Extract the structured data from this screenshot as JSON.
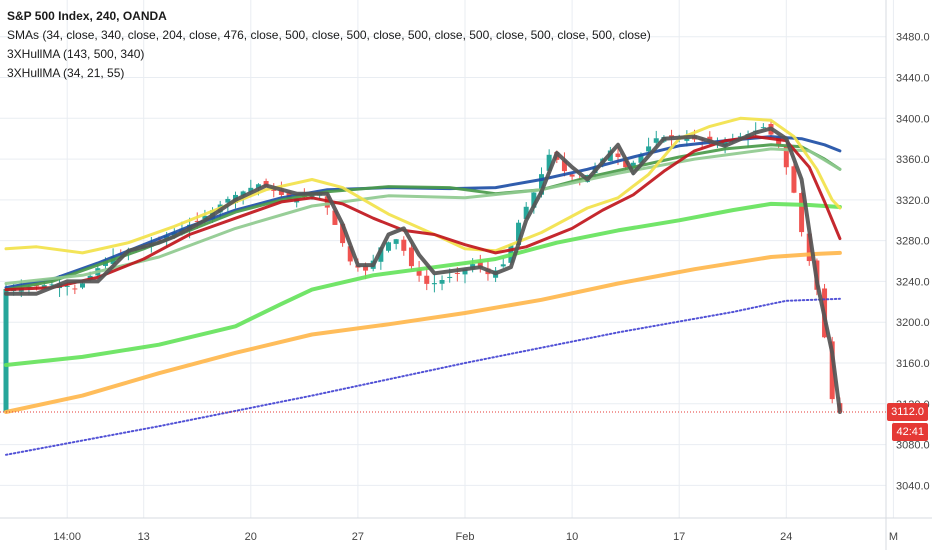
{
  "legend": {
    "title": "S&P 500 Index, 240, OANDA",
    "studies": [
      "SMAs (34, close, 340, close, 204, close, 476, close, 500, close, 500, close, 500, close, 500, close, 500, close, 500, close)",
      "3XHullMA (143, 500, 340)",
      "3XHullMA (34, 21, 55)"
    ]
  },
  "price_badge": "3112.0",
  "countdown_badge": "42:41",
  "colors": {
    "up": "#26a69a",
    "down": "#ef5350",
    "last_line": "#e53935",
    "badge_bg": "#e53935",
    "grid": "#e9edf2",
    "axis_text": "#444444"
  },
  "chart_data": {
    "type": "line",
    "title": "S&P 500 Index, 240, OANDA",
    "xlabel": "",
    "ylabel": "",
    "ylim": [
      3008,
      3516
    ],
    "x_ticks": [
      {
        "label": "14:00",
        "x": 8
      },
      {
        "label": "13",
        "x": 18
      },
      {
        "label": "20",
        "x": 32
      },
      {
        "label": "27",
        "x": 46
      },
      {
        "label": "Feb",
        "x": 60
      },
      {
        "label": "10",
        "x": 74
      },
      {
        "label": "17",
        "x": 88
      },
      {
        "label": "24",
        "x": 102
      },
      {
        "label": "M",
        "x": 116
      }
    ],
    "y_ticks": [
      3040,
      3080,
      3120,
      3160,
      3200,
      3240,
      3280,
      3320,
      3360,
      3400,
      3440,
      3480
    ],
    "last_price": 3112.0,
    "series": [
      {
        "role": "sma-500-blue-dots",
        "color": "#3f3fd1",
        "style": "dots",
        "width": 2,
        "points": [
          [
            0,
            3070
          ],
          [
            20,
            3098
          ],
          [
            40,
            3128
          ],
          [
            60,
            3160
          ],
          [
            80,
            3190
          ],
          [
            95,
            3210
          ],
          [
            100,
            3218
          ],
          [
            102,
            3221
          ],
          [
            109,
            3223
          ]
        ]
      },
      {
        "role": "sma-476-orange",
        "color": "#ffb74d",
        "width": 4,
        "points": [
          [
            0,
            3112
          ],
          [
            10,
            3128
          ],
          [
            20,
            3150
          ],
          [
            30,
            3170
          ],
          [
            40,
            3188
          ],
          [
            50,
            3198
          ],
          [
            60,
            3209
          ],
          [
            70,
            3222
          ],
          [
            80,
            3238
          ],
          [
            90,
            3252
          ],
          [
            100,
            3264
          ],
          [
            106,
            3267
          ],
          [
            109,
            3268
          ]
        ]
      },
      {
        "role": "sma-340-light-green",
        "color": "#66e35c",
        "width": 4,
        "points": [
          [
            0,
            3158
          ],
          [
            10,
            3166
          ],
          [
            20,
            3178
          ],
          [
            30,
            3196
          ],
          [
            36,
            3218
          ],
          [
            40,
            3232
          ],
          [
            48,
            3246
          ],
          [
            56,
            3254
          ],
          [
            64,
            3262
          ],
          [
            72,
            3278
          ],
          [
            80,
            3290
          ],
          [
            88,
            3300
          ],
          [
            95,
            3310
          ],
          [
            100,
            3316
          ],
          [
            105,
            3315
          ],
          [
            109,
            3313
          ]
        ]
      },
      {
        "role": "sma-204-blue",
        "color": "#1e4fa6",
        "width": 3,
        "points": [
          [
            0,
            3234
          ],
          [
            6,
            3242
          ],
          [
            12,
            3258
          ],
          [
            18,
            3276
          ],
          [
            24,
            3294
          ],
          [
            30,
            3310
          ],
          [
            36,
            3322
          ],
          [
            42,
            3330
          ],
          [
            50,
            3332
          ],
          [
            58,
            3331
          ],
          [
            64,
            3332
          ],
          [
            70,
            3340
          ],
          [
            76,
            3350
          ],
          [
            82,
            3362
          ],
          [
            88,
            3373
          ],
          [
            94,
            3378
          ],
          [
            100,
            3382
          ],
          [
            104,
            3380
          ],
          [
            107,
            3374
          ],
          [
            109,
            3368
          ]
        ]
      },
      {
        "role": "hullma-143-green",
        "color": "#4a9a4a",
        "width": 3,
        "points": [
          [
            0,
            3232
          ],
          [
            6,
            3240
          ],
          [
            12,
            3256
          ],
          [
            18,
            3272
          ],
          [
            24,
            3290
          ],
          [
            30,
            3308
          ],
          [
            36,
            3320
          ],
          [
            42,
            3328
          ],
          [
            50,
            3333
          ],
          [
            58,
            3332
          ],
          [
            64,
            3326
          ],
          [
            70,
            3330
          ],
          [
            76,
            3342
          ],
          [
            82,
            3352
          ],
          [
            88,
            3362
          ],
          [
            94,
            3370
          ],
          [
            100,
            3374
          ],
          [
            104,
            3372
          ],
          [
            107,
            3360
          ],
          [
            109,
            3350
          ]
        ]
      },
      {
        "role": "hullma-500-light-green",
        "color": "#8fca8f",
        "width": 3,
        "points": [
          [
            0,
            3238
          ],
          [
            10,
            3246
          ],
          [
            20,
            3264
          ],
          [
            30,
            3292
          ],
          [
            40,
            3314
          ],
          [
            50,
            3324
          ],
          [
            60,
            3322
          ],
          [
            70,
            3330
          ],
          [
            80,
            3346
          ],
          [
            90,
            3360
          ],
          [
            100,
            3370
          ],
          [
            105,
            3368
          ],
          [
            109,
            3350
          ]
        ]
      },
      {
        "role": "sma-34-yellow",
        "color": "#f2e24a",
        "width": 3,
        "points": [
          [
            0,
            3272
          ],
          [
            4,
            3274
          ],
          [
            10,
            3268
          ],
          [
            16,
            3278
          ],
          [
            22,
            3294
          ],
          [
            28,
            3312
          ],
          [
            34,
            3330
          ],
          [
            40,
            3340
          ],
          [
            44,
            3332
          ],
          [
            50,
            3306
          ],
          [
            56,
            3286
          ],
          [
            60,
            3272
          ],
          [
            64,
            3270
          ],
          [
            70,
            3288
          ],
          [
            76,
            3312
          ],
          [
            80,
            3322
          ],
          [
            84,
            3345
          ],
          [
            88,
            3380
          ],
          [
            92,
            3392
          ],
          [
            96,
            3400
          ],
          [
            100,
            3398
          ],
          [
            103,
            3382
          ],
          [
            106,
            3350
          ],
          [
            108,
            3320
          ],
          [
            109,
            3312
          ]
        ]
      },
      {
        "role": "hullma-340-red",
        "color": "#c0161c",
        "width": 3,
        "points": [
          [
            0,
            3232
          ],
          [
            6,
            3234
          ],
          [
            12,
            3244
          ],
          [
            18,
            3262
          ],
          [
            24,
            3286
          ],
          [
            30,
            3302
          ],
          [
            36,
            3318
          ],
          [
            40,
            3322
          ],
          [
            44,
            3316
          ],
          [
            48,
            3302
          ],
          [
            52,
            3290
          ],
          [
            56,
            3286
          ],
          [
            60,
            3276
          ],
          [
            64,
            3268
          ],
          [
            68,
            3274
          ],
          [
            74,
            3292
          ],
          [
            78,
            3310
          ],
          [
            82,
            3325
          ],
          [
            86,
            3348
          ],
          [
            90,
            3368
          ],
          [
            94,
            3378
          ],
          [
            98,
            3382
          ],
          [
            102,
            3378
          ],
          [
            105,
            3352
          ],
          [
            107,
            3318
          ],
          [
            109,
            3282
          ]
        ]
      },
      {
        "role": "hullma-34-dark",
        "color": "#555555",
        "width": 4,
        "points": [
          [
            0,
            3228
          ],
          [
            4,
            3228
          ],
          [
            8,
            3240
          ],
          [
            12,
            3240
          ],
          [
            16,
            3270
          ],
          [
            20,
            3278
          ],
          [
            22,
            3284
          ],
          [
            26,
            3300
          ],
          [
            30,
            3320
          ],
          [
            34,
            3334
          ],
          [
            38,
            3326
          ],
          [
            42,
            3326
          ],
          [
            44,
            3296
          ],
          [
            46,
            3256
          ],
          [
            48,
            3256
          ],
          [
            50,
            3286
          ],
          [
            52,
            3292
          ],
          [
            54,
            3266
          ],
          [
            56,
            3248
          ],
          [
            60,
            3252
          ],
          [
            62,
            3254
          ],
          [
            64,
            3248
          ],
          [
            66,
            3254
          ],
          [
            68,
            3300
          ],
          [
            70,
            3328
          ],
          [
            72,
            3366
          ],
          [
            74,
            3352
          ],
          [
            76,
            3340
          ],
          [
            80,
            3374
          ],
          [
            82,
            3346
          ],
          [
            86,
            3380
          ],
          [
            90,
            3382
          ],
          [
            94,
            3373
          ],
          [
            98,
            3386
          ],
          [
            100,
            3390
          ],
          [
            102,
            3380
          ],
          [
            104,
            3340
          ],
          [
            106,
            3240
          ],
          [
            108,
            3170
          ],
          [
            109,
            3112
          ]
        ]
      }
    ],
    "candles": {
      "count": 110,
      "y_anchors": [
        [
          0,
          3232
        ],
        [
          8,
          3238
        ],
        [
          10,
          3232
        ],
        [
          14,
          3262
        ],
        [
          20,
          3278
        ],
        [
          26,
          3300
        ],
        [
          30,
          3322
        ],
        [
          34,
          3336
        ],
        [
          38,
          3320
        ],
        [
          42,
          3326
        ],
        [
          44,
          3292
        ],
        [
          46,
          3256
        ],
        [
          48,
          3250
        ],
        [
          50,
          3276
        ],
        [
          52,
          3282
        ],
        [
          54,
          3252
        ],
        [
          56,
          3236
        ],
        [
          60,
          3248
        ],
        [
          62,
          3258
        ],
        [
          64,
          3246
        ],
        [
          66,
          3258
        ],
        [
          68,
          3302
        ],
        [
          70,
          3330
        ],
        [
          72,
          3368
        ],
        [
          74,
          3346
        ],
        [
          76,
          3338
        ],
        [
          80,
          3370
        ],
        [
          82,
          3350
        ],
        [
          86,
          3382
        ],
        [
          90,
          3380
        ],
        [
          94,
          3376
        ],
        [
          98,
          3385
        ],
        [
          100,
          3392
        ],
        [
          102,
          3372
        ],
        [
          104,
          3322
        ],
        [
          105,
          3280
        ],
        [
          106,
          3255
        ],
        [
          107,
          3226
        ],
        [
          108,
          3175
        ],
        [
          109,
          3112
        ]
      ]
    }
  }
}
